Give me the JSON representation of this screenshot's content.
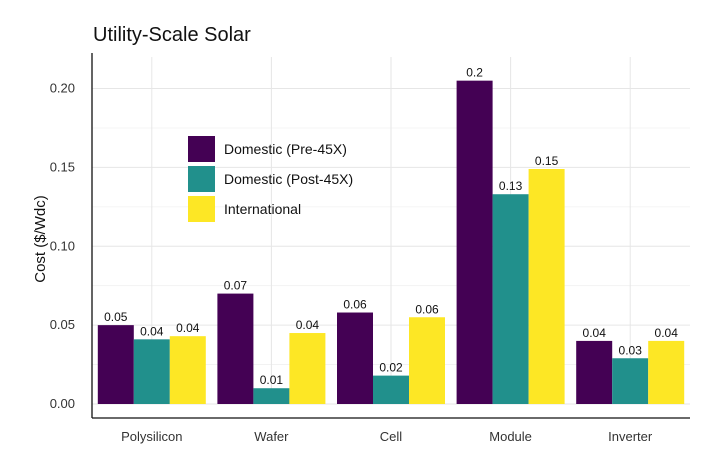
{
  "chart_data": {
    "type": "bar",
    "title": "Utility-Scale Solar",
    "xlabel": "",
    "ylabel": "Cost ($/Wdc)",
    "categories": [
      "Polysilicon",
      "Wafer",
      "Cell",
      "Module",
      "Inverter"
    ],
    "ylim": [
      0,
      0.22
    ],
    "yticks": [
      0.0,
      0.05,
      0.1,
      0.15,
      0.2
    ],
    "ytick_labels": [
      "0.00",
      "0.05",
      "0.10",
      "0.15",
      "0.20"
    ],
    "grid": true,
    "legend_position": "upper-left-inside",
    "series": [
      {
        "name": "Domestic (Pre-45X)",
        "color": "#440154",
        "values": [
          0.05,
          0.07,
          0.058,
          0.205,
          0.04
        ],
        "labels": [
          "0.05",
          "0.07",
          "0.06",
          "0.2",
          "0.04"
        ]
      },
      {
        "name": "Domestic (Post-45X)",
        "color": "#21908C",
        "values": [
          0.041,
          0.01,
          0.018,
          0.133,
          0.029
        ],
        "labels": [
          "0.04",
          "0.01",
          "0.02",
          "0.13",
          "0.03"
        ]
      },
      {
        "name": "International",
        "color": "#FDE725",
        "values": [
          0.043,
          0.045,
          0.055,
          0.149,
          0.04
        ],
        "labels": [
          "0.04",
          "0.04",
          "0.06",
          "0.15",
          "0.04"
        ]
      }
    ]
  }
}
